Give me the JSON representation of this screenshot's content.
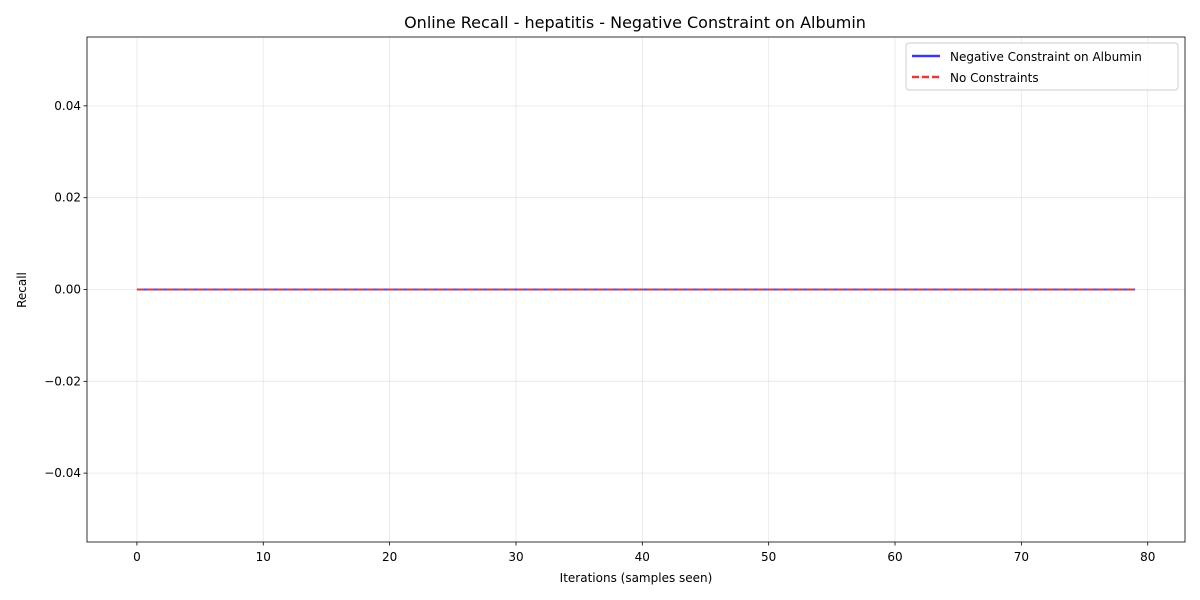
{
  "chart_data": {
    "type": "line",
    "title": "Online Recall - hepatitis - Negative Constraint on Albumin",
    "xlabel": "Iterations (samples seen)",
    "ylabel": "Recall",
    "xlim": [
      -3.95,
      82.95
    ],
    "ylim": [
      -0.055,
      0.055
    ],
    "x_ticks": [
      0,
      10,
      20,
      30,
      40,
      50,
      60,
      70,
      80
    ],
    "x_tick_labels": [
      "0",
      "10",
      "20",
      "30",
      "40",
      "50",
      "60",
      "70",
      "80"
    ],
    "y_ticks": [
      -0.04,
      -0.02,
      0.0,
      0.02,
      0.04
    ],
    "y_tick_labels": [
      "−0.04",
      "−0.02",
      "0.00",
      "0.02",
      "0.04"
    ],
    "grid": true,
    "legend_position": "top-right",
    "x_range": [
      0,
      79
    ],
    "series": [
      {
        "name": "Negative Constraint on Albumin",
        "color": "#3a3ae6",
        "style": "solid",
        "y_constant": 0.0
      },
      {
        "name": "No Constraints",
        "color": "#e63a3a",
        "style": "dashed",
        "y_constant": 0.0
      }
    ]
  }
}
